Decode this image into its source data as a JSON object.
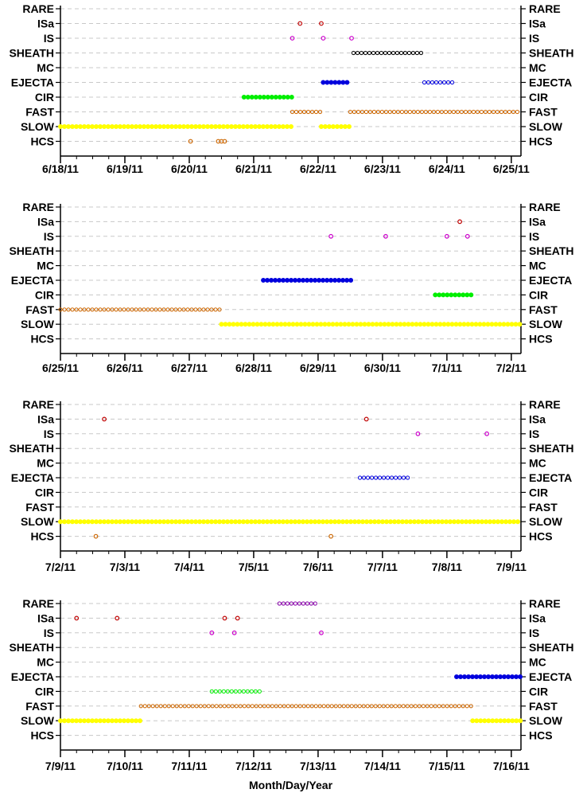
{
  "chart_data": {
    "type": "scatter",
    "categories": [
      "RARE",
      "ISa",
      "IS",
      "SHEATH",
      "MC",
      "EJECTA",
      "CIR",
      "FAST",
      "SLOW",
      "HCS"
    ],
    "xlabel": "Month/Day/Year",
    "grid": "horizontal-dashed",
    "panels": [
      {
        "x_ticks": [
          "6/18/11",
          "6/19/11",
          "6/20/11",
          "6/21/11",
          "6/22/11",
          "6/23/11",
          "6/24/11",
          "6/25/11"
        ],
        "xlim": [
          0,
          7.15
        ],
        "series": [
          {
            "category": "ISa",
            "color": "#c00000",
            "style": "points",
            "x": [
              3.72,
              4.05
            ]
          },
          {
            "category": "IS",
            "color": "#cc00cc",
            "style": "points",
            "x": [
              3.6,
              4.08,
              4.52
            ]
          },
          {
            "category": "SHEATH",
            "color": "#000000",
            "style": "run",
            "x": [
              4.55,
              5.62
            ]
          },
          {
            "category": "EJECTA",
            "color": "#0000dd",
            "style": "solid",
            "x": [
              4.08,
              4.5
            ]
          },
          {
            "category": "EJECTA",
            "color": "#0000dd",
            "style": "run",
            "x": [
              5.65,
              6.1
            ]
          },
          {
            "category": "CIR",
            "color": "#00ee00",
            "style": "solid",
            "x": [
              2.85,
              3.6
            ]
          },
          {
            "category": "FAST",
            "color": "#cc6600",
            "style": "run",
            "x": [
              3.6,
              4.05
            ]
          },
          {
            "category": "FAST",
            "color": "#cc6600",
            "style": "run",
            "x": [
              4.5,
              7.15
            ]
          },
          {
            "category": "SLOW",
            "color": "#ffff00",
            "style": "solid",
            "x": [
              0,
              3.6
            ]
          },
          {
            "category": "SLOW",
            "color": "#ffff00",
            "style": "solid",
            "x": [
              4.05,
              4.5
            ]
          },
          {
            "category": "HCS",
            "color": "#cc6600",
            "style": "points",
            "x": [
              2.02,
              2.45,
              2.5,
              2.55
            ]
          }
        ]
      },
      {
        "x_ticks": [
          "6/25/11",
          "6/26/11",
          "6/27/11",
          "6/28/11",
          "6/29/11",
          "6/30/11",
          "7/1/11",
          "7/2/11"
        ],
        "xlim": [
          0,
          7.15
        ],
        "series": [
          {
            "category": "ISa",
            "color": "#c00000",
            "style": "points",
            "x": [
              6.2
            ]
          },
          {
            "category": "IS",
            "color": "#cc00cc",
            "style": "points",
            "x": [
              4.2,
              5.05,
              6.0,
              6.32
            ]
          },
          {
            "category": "EJECTA",
            "color": "#0000dd",
            "style": "solid",
            "x": [
              3.15,
              4.55
            ]
          },
          {
            "category": "CIR",
            "color": "#00ee00",
            "style": "solid",
            "x": [
              5.82,
              6.4
            ]
          },
          {
            "category": "FAST",
            "color": "#cc6600",
            "style": "run",
            "x": [
              0,
              2.5
            ]
          },
          {
            "category": "SLOW",
            "color": "#ffff00",
            "style": "solid",
            "x": [
              2.5,
              7.15
            ]
          }
        ]
      },
      {
        "x_ticks": [
          "7/2/11",
          "7/3/11",
          "7/4/11",
          "7/5/11",
          "7/6/11",
          "7/7/11",
          "7/8/11",
          "7/9/11"
        ],
        "xlim": [
          0,
          7.15
        ],
        "series": [
          {
            "category": "ISa",
            "color": "#c00000",
            "style": "points",
            "x": [
              0.68,
              4.75
            ]
          },
          {
            "category": "IS",
            "color": "#cc00cc",
            "style": "points",
            "x": [
              5.55,
              6.62
            ]
          },
          {
            "category": "EJECTA",
            "color": "#0000dd",
            "style": "run",
            "x": [
              4.65,
              5.45
            ]
          },
          {
            "category": "SLOW",
            "color": "#ffff00",
            "style": "solid",
            "x": [
              0,
              7.15
            ]
          },
          {
            "category": "HCS",
            "color": "#cc6600",
            "style": "points",
            "x": [
              0.55,
              4.2
            ]
          }
        ]
      },
      {
        "x_ticks": [
          "7/9/11",
          "7/10/11",
          "7/11/11",
          "7/12/11",
          "7/13/11",
          "7/14/11",
          "7/15/11",
          "7/16/11"
        ],
        "xlim": [
          0,
          7.15
        ],
        "series": [
          {
            "category": "RARE",
            "color": "#8800aa",
            "style": "run",
            "x": [
              3.4,
              4.0
            ]
          },
          {
            "category": "ISa",
            "color": "#c00000",
            "style": "points",
            "x": [
              0.25,
              0.88,
              2.55,
              2.75
            ]
          },
          {
            "category": "IS",
            "color": "#cc00cc",
            "style": "points",
            "x": [
              2.35,
              2.7,
              4.05
            ]
          },
          {
            "category": "EJECTA",
            "color": "#0000dd",
            "style": "solid",
            "x": [
              6.15,
              7.15
            ]
          },
          {
            "category": "CIR",
            "color": "#00ee00",
            "style": "run",
            "x": [
              2.35,
              3.15
            ]
          },
          {
            "category": "FAST",
            "color": "#cc6600",
            "style": "run",
            "x": [
              1.25,
              6.4
            ]
          },
          {
            "category": "SLOW",
            "color": "#ffff00",
            "style": "solid",
            "x": [
              0,
              1.25
            ]
          },
          {
            "category": "SLOW",
            "color": "#ffff00",
            "style": "solid",
            "x": [
              6.4,
              7.15
            ]
          }
        ]
      }
    ]
  }
}
